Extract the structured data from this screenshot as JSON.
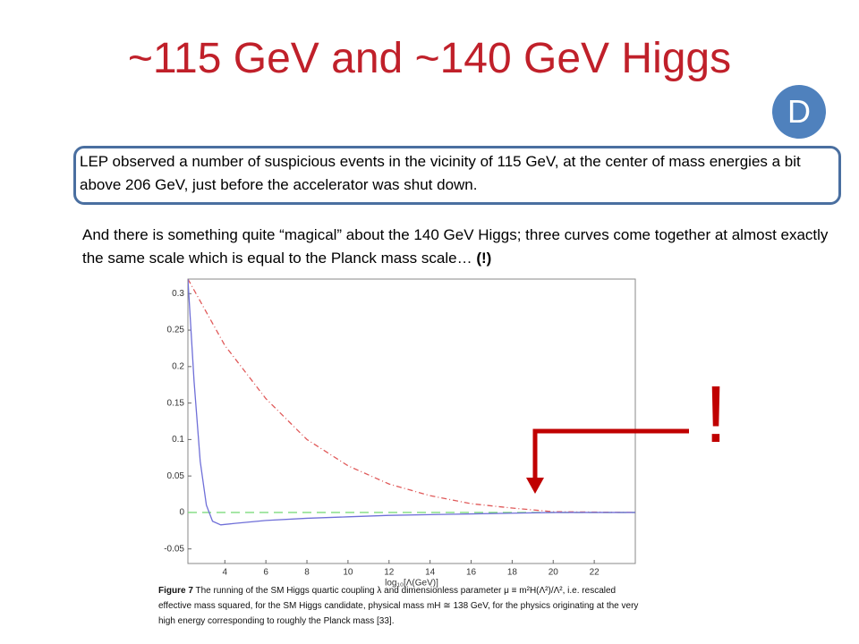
{
  "slide": {
    "title": "~115 GeV and ~140 GeV Higgs",
    "badge": "D",
    "box_text": "LEP observed a number of suspicious events in the vicinity of 115 GeV, at the center of mass energies a bit above 206 GeV, just before the accelerator was shut down.",
    "paragraph": "And there is something quite “magical” about the 140 GeV Higgs; three curves come together at almost exactly the same scale which is equal to the Planck mass scale… ",
    "paragraph_emphasis": "(!)",
    "exclamation": "!",
    "caption_label": "Figure 7",
    "caption_text": " The running of the SM Higgs quartic coupling λ and dimensionless parameter μ ≡ m²H(Λ²)/Λ², i.e. rescaled effective mass squared, for the SM Higgs candidate, physical mass mH ≅ 138 GeV, for the physics originating at the very high energy corresponding to roughly the Planck mass [33]."
  },
  "chart_data": {
    "type": "line",
    "x_label": "log₁₀[Λ(GeV)]",
    "xlim": [
      2.2,
      24
    ],
    "ylim": [
      -0.07,
      0.32
    ],
    "xticks": [
      4,
      6,
      8,
      10,
      12,
      14,
      16,
      18,
      20,
      22
    ],
    "yticks": [
      -0.05,
      0,
      0.05,
      0.1,
      0.15,
      0.2,
      0.25,
      0.3
    ],
    "grid": false,
    "series": [
      {
        "color": "#6f6fd8",
        "linestyle": "solid",
        "x": [
          2.2,
          2.5,
          2.8,
          3.1,
          3.4,
          3.8,
          4.5,
          6,
          8,
          10,
          12,
          14,
          16,
          18,
          20,
          24
        ],
        "values": [
          0.32,
          0.18,
          0.07,
          0.01,
          -0.012,
          -0.017,
          -0.015,
          -0.011,
          -0.008,
          -0.006,
          -0.004,
          -0.003,
          -0.002,
          -0.001,
          0,
          0
        ]
      },
      {
        "color": "#e05a5a",
        "linestyle": "dashdot",
        "x": [
          2.2,
          4,
          6,
          8,
          10,
          12,
          14,
          16,
          18,
          20,
          24
        ],
        "values": [
          0.32,
          0.229,
          0.156,
          0.1,
          0.064,
          0.039,
          0.023,
          0.012,
          0.006,
          0.001,
          0
        ]
      },
      {
        "color": "#7fdc7f",
        "linestyle": "dashed",
        "x": [
          2.2,
          24
        ],
        "values": [
          0,
          0
        ]
      }
    ]
  }
}
